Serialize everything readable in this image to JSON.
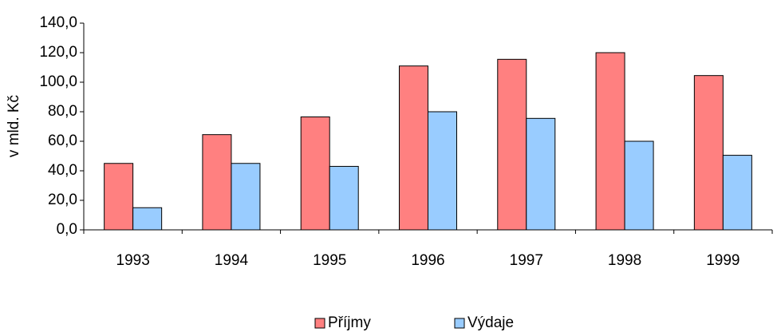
{
  "chart_data": {
    "type": "bar",
    "y_label": "v mld. Kč",
    "categories": [
      "1993",
      "1994",
      "1995",
      "1996",
      "1997",
      "1998",
      "1999"
    ],
    "series": [
      {
        "name": "Příjmy",
        "color": "#ff8080",
        "values": [
          45,
          64.5,
          76.5,
          111,
          115.5,
          120,
          104.5
        ]
      },
      {
        "name": "Výdaje",
        "color": "#99ccff",
        "values": [
          15,
          45,
          43,
          80,
          75.5,
          60,
          50.5
        ]
      }
    ],
    "ylim": [
      0,
      140
    ],
    "yticks": [
      {
        "value": 0,
        "label": "0,0"
      },
      {
        "value": 20,
        "label": "20,0"
      },
      {
        "value": 40,
        "label": "40,0"
      },
      {
        "value": 60,
        "label": "60,0"
      },
      {
        "value": 80,
        "label": "80,0"
      },
      {
        "value": 100,
        "label": "100,0"
      },
      {
        "value": 120,
        "label": "120,0"
      },
      {
        "value": 140,
        "label": "140,0"
      }
    ],
    "grid": false,
    "legend": "bottom"
  }
}
